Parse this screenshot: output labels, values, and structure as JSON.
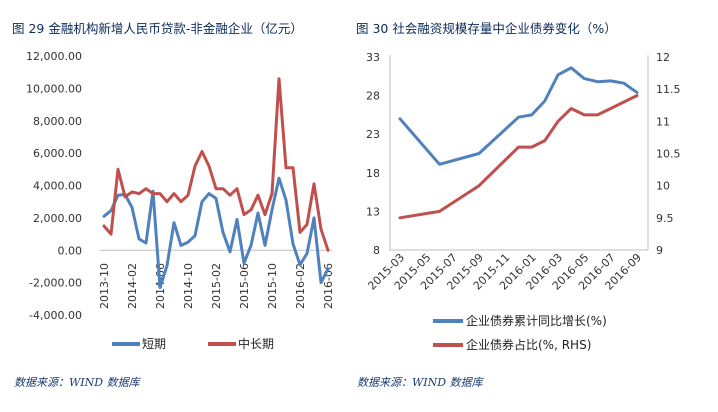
{
  "left_title": "图 29 金融机构新增人民币贷款-非金融企业（亿元）",
  "right_title": "图 30 社会融资规模存量中企业债券变化（%）",
  "left_source": "数据来源：WIND 数据库",
  "right_source": "数据来源：WIND 数据库",
  "colors": {
    "blue": "#4f81bd",
    "red": "#c0504d",
    "title": "#0b2a5a",
    "axis": "#bfbfbf"
  },
  "chart_data": [
    {
      "type": "line",
      "title": "图 29 金融机构新增人民币贷款-非金融企业（亿元）",
      "y_ticks": [
        "12,000.00",
        "10,000.00",
        "8,000.00",
        "6,000.00",
        "4,000.00",
        "2,000.00",
        "0.00",
        "-2,000.00",
        "-4,000.00"
      ],
      "ylim": [
        -4000,
        12000
      ],
      "x_tick_labels": [
        "2013-10",
        "2014-02",
        "2014-06",
        "2014-10",
        "2015-02",
        "2015-06",
        "2015-10",
        "2016-02",
        "2016-06"
      ],
      "x_start": "2013-10",
      "legend_position": "bottom",
      "series": [
        {
          "name": "短期",
          "color": "#4f81bd",
          "values": [
            2100,
            2450,
            3400,
            3450,
            2650,
            700,
            450,
            3650,
            -2300,
            -950,
            1700,
            300,
            500,
            900,
            3000,
            3500,
            3200,
            1100,
            -100,
            1900,
            -800,
            300,
            2300,
            300,
            2500,
            4450,
            3100,
            400,
            -900,
            -200,
            2000,
            -2000,
            -1150
          ]
        },
        {
          "name": "中长期",
          "color": "#c0504d",
          "values": [
            1500,
            1000,
            5000,
            3300,
            3600,
            3500,
            3800,
            3500,
            3500,
            3000,
            3500,
            3000,
            3400,
            5200,
            6100,
            5200,
            3800,
            3800,
            3400,
            3800,
            2200,
            2500,
            3400,
            2200,
            3500,
            10600,
            5100,
            5100,
            1100,
            1600,
            4100,
            1300,
            0
          ]
        }
      ]
    },
    {
      "type": "line",
      "title": "图 30 社会融资规模存量中企业债券变化（%）",
      "y_left_ticks": [
        "33",
        "28",
        "23",
        "18",
        "13",
        "8"
      ],
      "y_right_ticks": [
        "12",
        "11.5",
        "11",
        "10.5",
        "10",
        "9.5",
        "9"
      ],
      "ylim_left": [
        8,
        33
      ],
      "ylim_right": [
        9,
        12
      ],
      "x_tick_labels": [
        "2015-03",
        "2015-05",
        "2015-07",
        "2015-09",
        "2015-11",
        "2016-01",
        "2016-03",
        "2016-05",
        "2016-07",
        "2016-09"
      ],
      "legend_position": "bottom",
      "series": [
        {
          "name": "企业债券累计同比增长(%)",
          "axis": "left",
          "color": "#4f81bd",
          "x": [
            "2015-03",
            "2015-06",
            "2015-09",
            "2015-12",
            "2016-01",
            "2016-02",
            "2016-03",
            "2016-04",
            "2016-05",
            "2016-06",
            "2016-07",
            "2016-08",
            "2016-09"
          ],
          "values": [
            25,
            19.1,
            20.5,
            25.2,
            25.5,
            27.3,
            30.7,
            31.6,
            30.2,
            29.8,
            29.9,
            29.6,
            28.4
          ]
        },
        {
          "name": "企业债券占比(%, RHS)",
          "axis": "right",
          "color": "#c0504d",
          "x": [
            "2015-03",
            "2015-06",
            "2015-09",
            "2015-12",
            "2016-01",
            "2016-02",
            "2016-03",
            "2016-04",
            "2016-05",
            "2016-06",
            "2016-07",
            "2016-08",
            "2016-09"
          ],
          "values": [
            9.5,
            9.6,
            10,
            10.6,
            10.6,
            10.7,
            11,
            11.2,
            11.1,
            11.1,
            11.2,
            11.3,
            11.4
          ]
        }
      ]
    }
  ]
}
